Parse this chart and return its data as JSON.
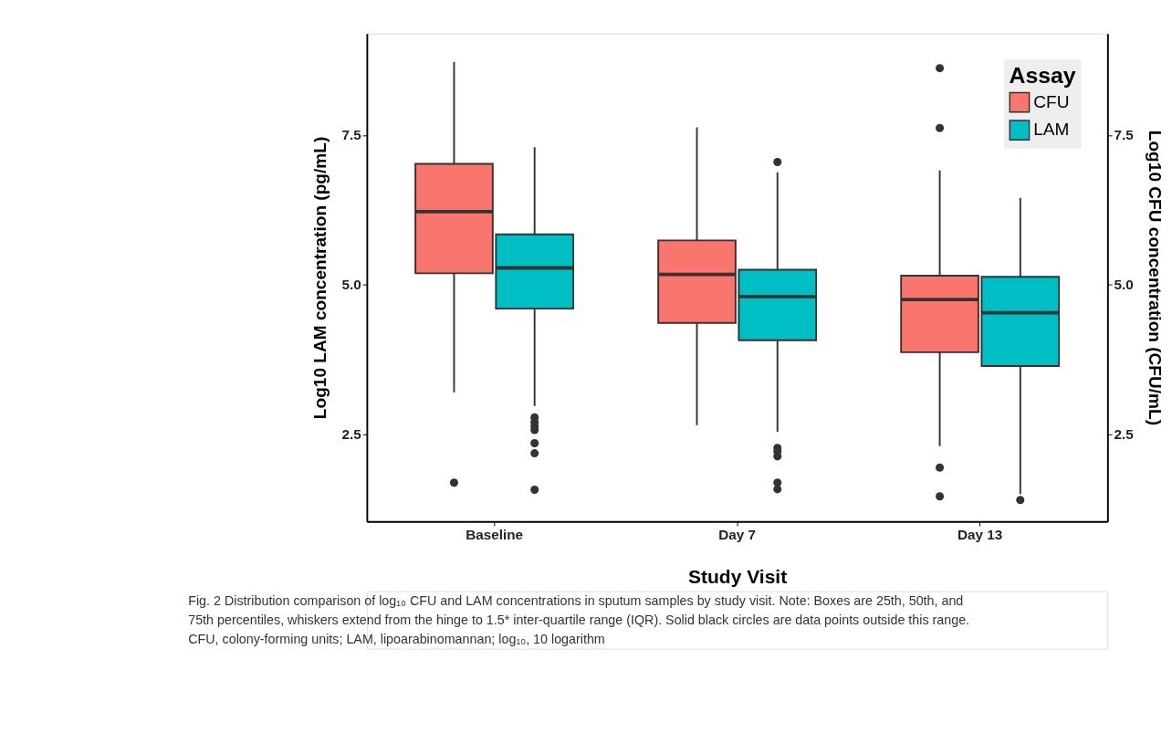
{
  "chart_data": {
    "type": "box",
    "xlabel": "Study Visit",
    "ylabel": "Log10 LAM concentration (pg/mL)",
    "y2label": "Log10 CFU concentration (CFU/mL)",
    "legend_title": "Assay",
    "legend": "top right",
    "grid": false,
    "categories": [
      "Baseline",
      "Day 7",
      "Day 13"
    ],
    "ylim": [
      1.04,
      9.2
    ],
    "yticks": [
      {
        "value": 2.5,
        "label": "2.5"
      },
      {
        "value": 5.0,
        "label": "5.0"
      },
      {
        "value": 7.5,
        "label": "7.5"
      }
    ],
    "y2lim": [
      1.04,
      9.2
    ],
    "y2ticks": [
      {
        "value": 2.5,
        "label": "2.5"
      },
      {
        "value": 5.0,
        "label": "5.0"
      },
      {
        "value": 7.5,
        "label": "7.5"
      }
    ],
    "series": [
      {
        "name": "CFU",
        "color": "#f8766d",
        "boxes": [
          {
            "low": 3.2,
            "q1": 5.19,
            "median": 6.22,
            "q3": 7.02,
            "high": 8.72,
            "outliers": [
              1.69
            ]
          },
          {
            "low": 2.65,
            "q1": 4.36,
            "median": 5.17,
            "q3": 5.74,
            "high": 7.63
          },
          {
            "low": 2.3,
            "q1": 3.87,
            "median": 4.75,
            "q3": 5.15,
            "high": 6.91,
            "outliers": [
              1.94,
              1.46,
              7.62,
              8.62
            ]
          }
        ]
      },
      {
        "name": "LAM",
        "color": "#00bfc4",
        "boxes": [
          {
            "low": 2.97,
            "q1": 4.6,
            "median": 5.28,
            "q3": 5.84,
            "high": 7.3,
            "outliers": [
              2.78,
              2.7,
              2.63,
              2.57,
              2.35,
              2.18,
              1.57
            ]
          },
          {
            "low": 2.54,
            "q1": 4.07,
            "median": 4.8,
            "q3": 5.25,
            "high": 6.88,
            "outliers": [
              7.05,
              2.27,
              2.21,
              2.13,
              1.69,
              1.58
            ]
          },
          {
            "low": 1.5,
            "q1": 3.64,
            "median": 4.53,
            "q3": 5.13,
            "high": 6.45,
            "outliers": [
              1.4
            ]
          }
        ]
      }
    ],
    "annotations": [
      "Fig. 2  Distribution comparison of log₁₀ CFU and LAM concentrations in sputum samples by study visit. Note: Boxes are 25th, 50th, and",
      "75th percentiles, whiskers extend from the hinge to 1.5* inter-quartile range (IQR). Solid black circles are data points outside this range.",
      "CFU, colony-forming units; LAM, lipoarabinomannan; log₁₀, 10 logarithm"
    ]
  }
}
